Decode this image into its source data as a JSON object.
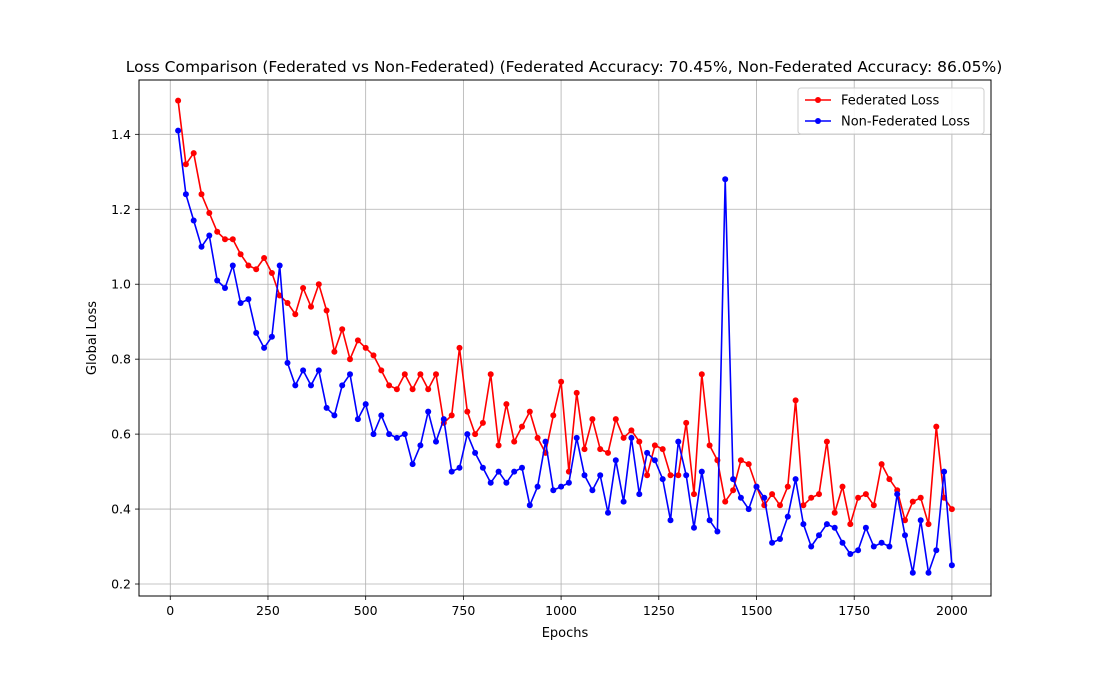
{
  "chart_data": {
    "type": "line",
    "title": "Loss Comparison (Federated vs Non-Federated) (Federated Accuracy: 70.45%, Non-Federated Accuracy: 86.05%)",
    "xlabel": "Epochs",
    "ylabel": "Global Loss",
    "xlim": [
      -80,
      2100
    ],
    "ylim": [
      0.168,
      1.545
    ],
    "xticks": [
      0,
      250,
      500,
      750,
      1000,
      1250,
      1500,
      1750,
      2000
    ],
    "xtick_labels": [
      "0",
      "250",
      "500",
      "750",
      "1000",
      "1250",
      "1500",
      "1750",
      "2000"
    ],
    "yticks": [
      0.2,
      0.4,
      0.6,
      0.8,
      1.0,
      1.2,
      1.4
    ],
    "ytick_labels": [
      "0.2",
      "0.4",
      "0.6",
      "0.8",
      "1.0",
      "1.2",
      "1.4"
    ],
    "grid": true,
    "legend_position": "top-right",
    "x": [
      20,
      40,
      60,
      80,
      100,
      120,
      140,
      160,
      180,
      200,
      220,
      240,
      260,
      280,
      300,
      320,
      340,
      360,
      380,
      400,
      420,
      440,
      460,
      480,
      500,
      520,
      540,
      560,
      580,
      600,
      620,
      640,
      660,
      680,
      700,
      720,
      740,
      760,
      780,
      800,
      820,
      840,
      860,
      880,
      900,
      920,
      940,
      960,
      980,
      1000,
      1020,
      1040,
      1060,
      1080,
      1100,
      1120,
      1140,
      1160,
      1180,
      1200,
      1220,
      1240,
      1260,
      1280,
      1300,
      1320,
      1340,
      1360,
      1380,
      1400,
      1420,
      1440,
      1460,
      1480,
      1500,
      1520,
      1540,
      1560,
      1580,
      1600,
      1620,
      1640,
      1660,
      1680,
      1700,
      1720,
      1740,
      1760,
      1780,
      1800,
      1820,
      1840,
      1860,
      1880,
      1900,
      1920,
      1940,
      1960,
      1980,
      2000
    ],
    "series": [
      {
        "name": "Federated Loss",
        "color": "#ff0000",
        "values": [
          1.49,
          1.32,
          1.35,
          1.24,
          1.19,
          1.14,
          1.12,
          1.12,
          1.08,
          1.05,
          1.04,
          1.07,
          1.03,
          0.97,
          0.95,
          0.92,
          0.99,
          0.94,
          1.0,
          0.93,
          0.82,
          0.88,
          0.8,
          0.85,
          0.83,
          0.81,
          0.77,
          0.73,
          0.72,
          0.76,
          0.72,
          0.76,
          0.72,
          0.76,
          0.63,
          0.65,
          0.83,
          0.66,
          0.6,
          0.63,
          0.76,
          0.57,
          0.68,
          0.58,
          0.62,
          0.66,
          0.59,
          0.55,
          0.65,
          0.74,
          0.5,
          0.71,
          0.56,
          0.64,
          0.56,
          0.55,
          0.64,
          0.59,
          0.61,
          0.58,
          0.49,
          0.57,
          0.56,
          0.49,
          0.49,
          0.63,
          0.44,
          0.76,
          0.57,
          0.53,
          0.42,
          0.45,
          0.53,
          0.52,
          0.46,
          0.41,
          0.44,
          0.41,
          0.46,
          0.69,
          0.41,
          0.43,
          0.44,
          0.58,
          0.39,
          0.46,
          0.36,
          0.43,
          0.44,
          0.41,
          0.52,
          0.48,
          0.45,
          0.37,
          0.42,
          0.43,
          0.36,
          0.62,
          0.43,
          0.4
        ]
      },
      {
        "name": "Non-Federated Loss",
        "color": "#0000ff",
        "values": [
          1.41,
          1.24,
          1.17,
          1.1,
          1.13,
          1.01,
          0.99,
          1.05,
          0.95,
          0.96,
          0.87,
          0.83,
          0.86,
          1.05,
          0.79,
          0.73,
          0.77,
          0.73,
          0.77,
          0.67,
          0.65,
          0.73,
          0.76,
          0.64,
          0.68,
          0.6,
          0.65,
          0.6,
          0.59,
          0.6,
          0.52,
          0.57,
          0.66,
          0.58,
          0.64,
          0.5,
          0.51,
          0.6,
          0.55,
          0.51,
          0.47,
          0.5,
          0.47,
          0.5,
          0.51,
          0.41,
          0.46,
          0.58,
          0.45,
          0.46,
          0.47,
          0.59,
          0.49,
          0.45,
          0.49,
          0.39,
          0.53,
          0.42,
          0.59,
          0.44,
          0.55,
          0.53,
          0.48,
          0.37,
          0.58,
          0.49,
          0.35,
          0.5,
          0.37,
          0.34,
          1.28,
          0.48,
          0.43,
          0.4,
          0.46,
          0.43,
          0.31,
          0.32,
          0.38,
          0.48,
          0.36,
          0.3,
          0.33,
          0.36,
          0.35,
          0.31,
          0.28,
          0.29,
          0.35,
          0.3,
          0.31,
          0.3,
          0.44,
          0.33,
          0.23,
          0.37,
          0.23,
          0.29,
          0.5,
          0.25
        ]
      }
    ]
  }
}
